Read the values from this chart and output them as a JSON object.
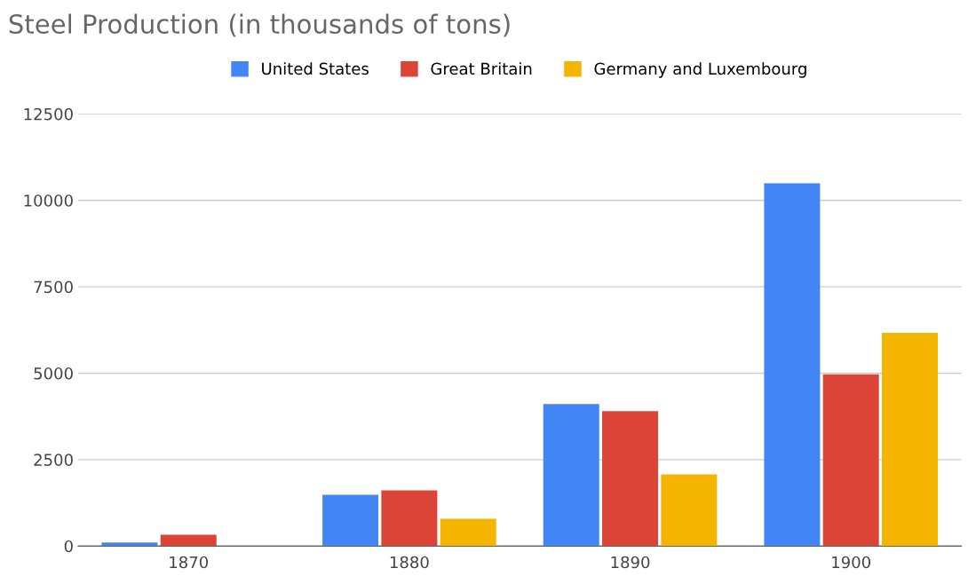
{
  "chart_data": {
    "type": "bar",
    "title": "Steel Production (in thousands of tons)",
    "categories": [
      "1870",
      "1880",
      "1890",
      "1900"
    ],
    "series": [
      {
        "name": "United States",
        "color": "#4285f4",
        "values": [
          100,
          1480,
          4110,
          10490
        ]
      },
      {
        "name": "Great Britain",
        "color": "#db4437",
        "values": [
          330,
          1610,
          3900,
          4970
        ]
      },
      {
        "name": "Germany and Luxembourg",
        "color": "#f4b400",
        "values": [
          null,
          790,
          2070,
          6170
        ]
      }
    ],
    "ylim": [
      0,
      12500
    ],
    "yticks": [
      0,
      2500,
      5000,
      7500,
      10000,
      12500
    ],
    "grid": "y",
    "legend": "top"
  }
}
